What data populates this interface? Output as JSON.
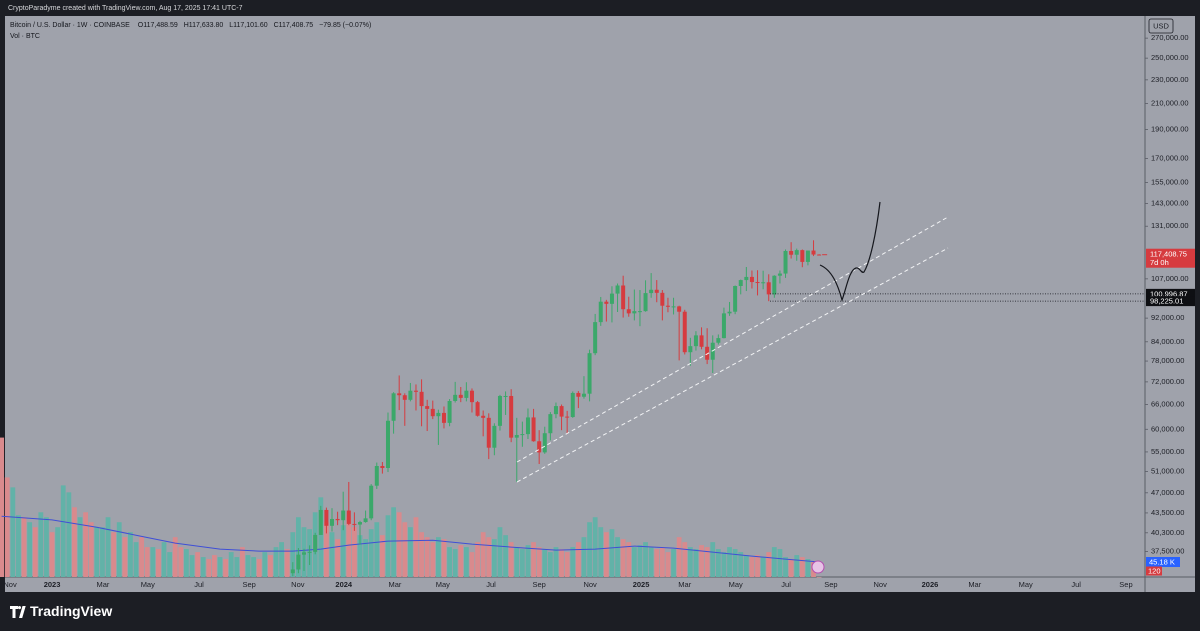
{
  "header": {
    "credit": "CryptoParadyme created with TradingView.com, Aug 17, 2025 17:41 UTC-7"
  },
  "footer": {
    "brand": "TradingView"
  },
  "chart_data": {
    "type": "candlestick",
    "legend": {
      "symbol": "Bitcoin / U.S. Dollar · 1W · COINBASE",
      "open": "O117,488.59",
      "high": "H117,633.80",
      "low": "L117,101.60",
      "close": "C117,408.75",
      "change": "−79.85 (−0.07%)"
    },
    "volume_legend": "Vol · BTC",
    "currency": "USD",
    "log_scale": true,
    "grid": false,
    "colors": {
      "up": "#3ba86a",
      "down": "#d63b3f",
      "volume_up": "#62b2a8",
      "volume_down": "#d98a8d",
      "ma": "#3f4fd6"
    },
    "ylim": [
      34000,
      294000
    ],
    "yticks": [
      {
        "value": 270000,
        "label": "270,000.00"
      },
      {
        "value": 250000,
        "label": "250,000.00"
      },
      {
        "value": 230000,
        "label": "230,000.00"
      },
      {
        "value": 210000,
        "label": "210,000.00"
      },
      {
        "value": 190000,
        "label": "190,000.00"
      },
      {
        "value": 170000,
        "label": "170,000.00"
      },
      {
        "value": 155000,
        "label": "155,000.00"
      },
      {
        "value": 143000,
        "label": "143,000.00"
      },
      {
        "value": 131000,
        "label": "131,000.00"
      },
      {
        "value": 107000,
        "label": "107,000.00"
      },
      {
        "value": 92000,
        "label": "92,000.00"
      },
      {
        "value": 84000,
        "label": "84,000.00"
      },
      {
        "value": 78000,
        "label": "78,000.00"
      },
      {
        "value": 72000,
        "label": "72,000.00"
      },
      {
        "value": 66000,
        "label": "66,000.00"
      },
      {
        "value": 60000,
        "label": "60,000.00"
      },
      {
        "value": 55000,
        "label": "55,000.00"
      },
      {
        "value": 51000,
        "label": "51,000.00"
      },
      {
        "value": 47000,
        "label": "47,000.00"
      },
      {
        "value": 43500,
        "label": "43,500.00"
      },
      {
        "value": 40300,
        "label": "40,300.00"
      },
      {
        "value": 37500,
        "label": "37,500.00"
      }
    ],
    "xlim": [
      -8.4,
      195.2
    ],
    "xticks": [
      {
        "value": -7.5,
        "label": "Nov"
      },
      {
        "value": 0,
        "label": "2023"
      },
      {
        "value": 9.1,
        "label": "Mar"
      },
      {
        "value": 17.1,
        "label": "May"
      },
      {
        "value": 26.25,
        "label": "Jul"
      },
      {
        "value": 35.2,
        "label": "Sep"
      },
      {
        "value": 43.9,
        "label": "Nov"
      },
      {
        "value": 52.1,
        "label": "2024"
      },
      {
        "value": 61.25,
        "label": "Mar"
      },
      {
        "value": 69.8,
        "label": "May"
      },
      {
        "value": 78.4,
        "label": "Jul"
      },
      {
        "value": 87,
        "label": "Sep"
      },
      {
        "value": 96.1,
        "label": "Nov"
      },
      {
        "value": 105.2,
        "label": "2025"
      },
      {
        "value": 113,
        "label": "Mar"
      },
      {
        "value": 122.1,
        "label": "May"
      },
      {
        "value": 131.1,
        "label": "Jul"
      },
      {
        "value": 139.1,
        "label": "Sep"
      },
      {
        "value": 147.9,
        "label": "Nov"
      },
      {
        "value": 156.8,
        "label": "2026"
      },
      {
        "value": 164.8,
        "label": "Mar"
      },
      {
        "value": 173.9,
        "label": "May"
      },
      {
        "value": 182.9,
        "label": "Jul"
      },
      {
        "value": 191.8,
        "label": "Sep"
      }
    ],
    "x": [
      43,
      44,
      45,
      46,
      47,
      48,
      49,
      50,
      51,
      52,
      53,
      54,
      55,
      56,
      57,
      58,
      59,
      60,
      61,
      62,
      63,
      64,
      65,
      66,
      67,
      68,
      69,
      70,
      71,
      72,
      73,
      74,
      75,
      76,
      77,
      78,
      79,
      80,
      81,
      82,
      83,
      84,
      85,
      86,
      87,
      88,
      89,
      90,
      91,
      92,
      93,
      94,
      95,
      96,
      97,
      98,
      99,
      100,
      101,
      102,
      103,
      104,
      105,
      106,
      107,
      108,
      109,
      110,
      111,
      112,
      113,
      114,
      115,
      116,
      117,
      118,
      119,
      120,
      121,
      122,
      123,
      124,
      125,
      126,
      127,
      128,
      129,
      130,
      131,
      132,
      133,
      134,
      135,
      136,
      137
    ],
    "open": [
      34500,
      35000,
      37050,
      37380,
      37450,
      39970,
      44000,
      41400,
      42500,
      42300,
      43900,
      41700,
      41600,
      42000,
      42600,
      48300,
      52100,
      51700,
      62000,
      68900,
      68400,
      67200,
      69600,
      69300,
      65600,
      64900,
      63100,
      63900,
      61500,
      66900,
      68500,
      67700,
      69600,
      66600,
      63200,
      62700,
      55900,
      60800,
      68200,
      68200,
      58100,
      58700,
      58900,
      62800,
      57300,
      54900,
      59100,
      63600,
      65600,
      63000,
      62900,
      69000,
      68000,
      68800,
      80400,
      90600,
      98000,
      97200,
      101100,
      104300,
      95200,
      93700,
      94500,
      94500,
      101300,
      102600,
      101400,
      96500,
      96100,
      96250,
      94300,
      80700,
      82600,
      86100,
      82400,
      78400,
      83700,
      85200,
      93700,
      94300,
      104100,
      106500,
      107800,
      105700,
      105600,
      105600,
      100800,
      108300,
      109200,
      119100,
      117400,
      119500,
      114200,
      119300,
      117488.59
    ],
    "high": [
      36000,
      38000,
      37900,
      38400,
      40300,
      44700,
      44400,
      44300,
      43700,
      47200,
      49000,
      43600,
      42200,
      43900,
      48600,
      52800,
      52900,
      64000,
      69200,
      73800,
      68900,
      71700,
      71300,
      72700,
      67200,
      67000,
      64700,
      65500,
      67400,
      72000,
      70600,
      71900,
      70200,
      66900,
      64500,
      63800,
      61400,
      68500,
      69400,
      70000,
      62700,
      61800,
      65000,
      64900,
      59800,
      60600,
      64100,
      66500,
      66000,
      64400,
      69400,
      69500,
      73600,
      81500,
      93500,
      99800,
      98700,
      104000,
      105100,
      108300,
      99900,
      102700,
      102500,
      106400,
      109400,
      106500,
      102500,
      99500,
      99500,
      96500,
      95000,
      85300,
      87500,
      88800,
      88500,
      86100,
      86400,
      95800,
      97900,
      104300,
      106700,
      112000,
      110500,
      110600,
      110400,
      108900,
      108500,
      110500,
      119800,
      123200,
      120200,
      119800,
      119300,
      124100,
      117633.8
    ],
    "low": [
      34100,
      34500,
      34800,
      35600,
      37100,
      39970,
      40200,
      40500,
      41500,
      40700,
      41500,
      40600,
      38500,
      41900,
      42300,
      47700,
      50600,
      50900,
      59000,
      64600,
      60800,
      66800,
      64500,
      60700,
      59600,
      62400,
      56500,
      60200,
      60700,
      66500,
      66600,
      66800,
      64000,
      63000,
      58400,
      53500,
      54300,
      59700,
      63400,
      57100,
      49000,
      56100,
      57800,
      57200,
      52500,
      54600,
      57500,
      62600,
      59800,
      58900,
      62700,
      65100,
      67500,
      66800,
      79800,
      89300,
      90800,
      90500,
      94200,
      92200,
      92500,
      91200,
      89200,
      94300,
      99500,
      97800,
      91200,
      94100,
      93300,
      78200,
      80000,
      76600,
      81200,
      81600,
      77100,
      74500,
      83100,
      85100,
      92800,
      93400,
      100800,
      102100,
      103100,
      100400,
      102800,
      98200,
      99500,
      105100,
      107400,
      115700,
      114700,
      111900,
      112700,
      116800,
      117101.6
    ],
    "close": [
      35000,
      37050,
      37380,
      37450,
      39970,
      44000,
      41400,
      42500,
      42300,
      43900,
      41700,
      41600,
      42000,
      42600,
      48300,
      52100,
      51700,
      62000,
      68900,
      68400,
      67200,
      69600,
      69300,
      65600,
      64900,
      63100,
      63900,
      61500,
      66900,
      68500,
      67700,
      69600,
      66600,
      63200,
      62700,
      55900,
      60800,
      68200,
      68200,
      58100,
      58700,
      58900,
      62800,
      57300,
      54900,
      59100,
      63600,
      65600,
      63000,
      62900,
      69000,
      68000,
      68800,
      80400,
      90600,
      98000,
      97200,
      101100,
      104300,
      95200,
      93700,
      94500,
      94500,
      101300,
      102600,
      101400,
      96500,
      96100,
      96250,
      94300,
      80700,
      82600,
      86100,
      82400,
      78400,
      83700,
      85200,
      93700,
      94300,
      104100,
      106500,
      107800,
      105700,
      105600,
      105600,
      100800,
      108300,
      109200,
      119100,
      117400,
      119500,
      114200,
      119300,
      117488.59,
      117408.75
    ],
    "last_price": {
      "value": 117408.75,
      "label": "117,408.75",
      "countdown": "7d 0h"
    },
    "levels": [
      {
        "value": 100996.87,
        "label": "100,996.87"
      },
      {
        "value": 98225.01,
        "label": "98,225.01"
      }
    ],
    "volume": {
      "ylim": [
        0,
        1690000
      ],
      "x": [
        -9,
        -8,
        -7,
        -6,
        -5,
        -4,
        -3,
        -2,
        -1,
        0,
        1,
        2,
        3,
        4,
        5,
        6,
        7,
        8,
        9,
        10,
        11,
        12,
        13,
        14,
        15,
        16,
        17,
        18,
        19,
        20,
        21,
        22,
        23,
        24,
        25,
        26,
        27,
        28,
        29,
        30,
        31,
        32,
        33,
        34,
        35,
        36,
        37,
        38,
        39,
        40,
        41,
        42,
        43,
        44,
        45,
        46,
        47,
        48,
        49,
        50,
        51,
        52,
        53,
        54,
        55,
        56,
        57,
        58,
        59,
        60,
        61,
        62,
        63,
        64,
        65,
        66,
        67,
        68,
        69,
        70,
        71,
        72,
        73,
        74,
        75,
        76,
        77,
        78,
        79,
        80,
        81,
        82,
        83,
        84,
        85,
        86,
        87,
        88,
        89,
        90,
        91,
        92,
        93,
        94,
        95,
        96,
        97,
        98,
        99,
        100,
        101,
        102,
        103,
        104,
        105,
        106,
        107,
        108,
        109,
        110,
        111,
        112,
        113,
        114,
        115,
        116,
        117,
        118,
        119,
        120,
        121,
        122,
        123,
        124,
        125,
        126,
        127,
        128,
        129,
        130,
        131,
        132,
        133,
        134,
        135,
        136,
        137
      ],
      "values": [
        420000,
        300000,
        270000,
        186000,
        180000,
        165000,
        150000,
        195000,
        180000,
        135000,
        150000,
        276000,
        255000,
        210000,
        180000,
        195000,
        165000,
        150000,
        150000,
        180000,
        135000,
        165000,
        120000,
        135000,
        105000,
        120000,
        90000,
        90000,
        84000,
        105000,
        75000,
        120000,
        90000,
        84000,
        66000,
        75000,
        60000,
        54000,
        66000,
        60000,
        54000,
        75000,
        60000,
        90000,
        66000,
        60000,
        54000,
        75000,
        66000,
        90000,
        105000,
        84000,
        135000,
        180000,
        150000,
        144000,
        195000,
        240000,
        165000,
        135000,
        114000,
        156000,
        180000,
        150000,
        126000,
        114000,
        144000,
        165000,
        126000,
        186000,
        210000,
        195000,
        165000,
        150000,
        180000,
        135000,
        120000,
        105000,
        120000,
        114000,
        90000,
        84000,
        96000,
        90000,
        75000,
        105000,
        135000,
        120000,
        114000,
        150000,
        126000,
        105000,
        90000,
        84000,
        96000,
        105000,
        90000,
        84000,
        75000,
        90000,
        84000,
        75000,
        90000,
        105000,
        120000,
        165000,
        180000,
        150000,
        135000,
        144000,
        120000,
        114000,
        105000,
        90000,
        96000,
        105000,
        90000,
        84000,
        90000,
        75000,
        84000,
        120000,
        105000,
        90000,
        84000,
        96000,
        90000,
        105000,
        84000,
        75000,
        90000,
        84000,
        75000,
        66000,
        60000,
        66000,
        60000,
        75000,
        90000,
        84000,
        60000,
        54000,
        66000,
        60000,
        54000,
        45000,
        120
      ],
      "value_labels": {
        "146": "120"
      },
      "up": [
        false,
        false,
        true,
        true,
        false,
        true,
        false,
        true,
        true,
        false,
        true,
        true,
        true,
        false,
        true,
        false,
        false,
        true,
        true,
        true,
        false,
        true,
        false,
        true,
        true,
        false,
        false,
        true,
        false,
        true,
        true,
        false,
        false,
        true,
        true,
        false,
        true,
        false,
        false,
        true,
        false,
        true,
        true,
        false,
        true,
        true,
        false,
        true,
        false,
        true,
        true,
        false
      ],
      "ma_x": [
        -9,
        0,
        8,
        15,
        22,
        30,
        37,
        43,
        48,
        53,
        60,
        68,
        75,
        82,
        90,
        97,
        104,
        111,
        118,
        125,
        131,
        137
      ],
      "ma": [
        183000,
        172000,
        150000,
        126000,
        102000,
        84000,
        78000,
        78000,
        84000,
        96000,
        108000,
        111000,
        99000,
        90000,
        81000,
        84000,
        93000,
        87000,
        75000,
        63000,
        54000,
        45180
      ],
      "ma_label": "45.18 K"
    }
  }
}
